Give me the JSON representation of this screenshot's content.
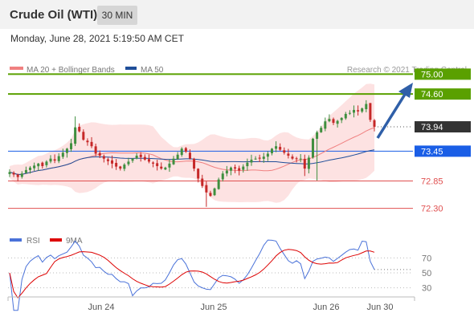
{
  "header": {
    "title": "Crude Oil (WTI)",
    "timeframe": "30 MIN"
  },
  "datetime": "Monday, June 28, 2021 5:19:50 AM CET",
  "legend": {
    "ma20": "MA 20 + Bollinger Bands",
    "ma50": "MA 50",
    "credit": "Research © 2021 Trading Central",
    "colors": {
      "ma20": "#f08080",
      "ma50": "#1f4e99"
    }
  },
  "rsi_legend": {
    "rsi": "RSI",
    "ma9": "9MA",
    "colors": {
      "rsi": "#4a72d9",
      "ma9": "#dd0000"
    }
  },
  "chart_data": [
    {
      "type": "candlestick",
      "x_labels": [
        "Jun 24",
        "Jun 25",
        "Jun 26",
        "Jun 30"
      ],
      "ylim": [
        72.1,
        75.2
      ],
      "current_price": 73.94,
      "levels": [
        {
          "value": 75.0,
          "label": "75.00",
          "kind": "target",
          "color": "#5aa000"
        },
        {
          "value": 74.6,
          "label": "74.60",
          "kind": "resistance",
          "color": "#5aa000"
        },
        {
          "value": 73.94,
          "label": "73.94",
          "kind": "last",
          "color": "#333333"
        },
        {
          "value": 73.45,
          "label": "73.45",
          "kind": "pivot",
          "color": "#1a5ee6"
        },
        {
          "value": 72.85,
          "label": "72.85",
          "kind": "support",
          "color": "#e05050"
        },
        {
          "value": 72.3,
          "label": "72.30",
          "kind": "support",
          "color": "#e05050"
        }
      ],
      "closes": [
        73.03,
        72.98,
        72.93,
        73.0,
        73.07,
        73.12,
        73.16,
        73.2,
        73.15,
        73.24,
        73.3,
        73.26,
        73.35,
        73.42,
        73.5,
        73.61,
        73.93,
        73.85,
        73.68,
        73.63,
        73.55,
        73.4,
        73.36,
        73.3,
        73.25,
        73.2,
        73.14,
        73.1,
        73.18,
        73.24,
        73.3,
        73.36,
        73.33,
        73.28,
        73.24,
        73.2,
        73.15,
        73.1,
        73.12,
        73.2,
        73.3,
        73.38,
        73.5,
        73.44,
        73.3,
        73.1,
        72.9,
        72.75,
        72.62,
        72.55,
        72.7,
        72.88,
        73.0,
        73.06,
        73.12,
        73.1,
        73.06,
        73.14,
        73.22,
        73.28,
        73.3,
        73.3,
        73.34,
        73.4,
        73.5,
        73.55,
        73.48,
        73.42,
        73.36,
        73.3,
        73.3,
        73.3,
        73.1,
        73.32,
        73.7,
        73.83,
        73.92,
        74.05,
        74.1,
        74.02,
        74.06,
        74.12,
        74.2,
        74.22,
        74.28,
        74.25,
        74.31,
        74.4,
        74.08,
        73.94
      ],
      "series": [
        {
          "name": "MA 20 + Bollinger Bands",
          "color": "#f08080"
        },
        {
          "name": "MA 50",
          "color": "#1f4e99"
        }
      ]
    },
    {
      "type": "line",
      "y_ticks": [
        70,
        50,
        30
      ],
      "ylim": [
        20,
        80
      ],
      "series": [
        {
          "name": "RSI",
          "color": "#4a72d9"
        },
        {
          "name": "9MA",
          "color": "#dd0000"
        }
      ]
    }
  ]
}
